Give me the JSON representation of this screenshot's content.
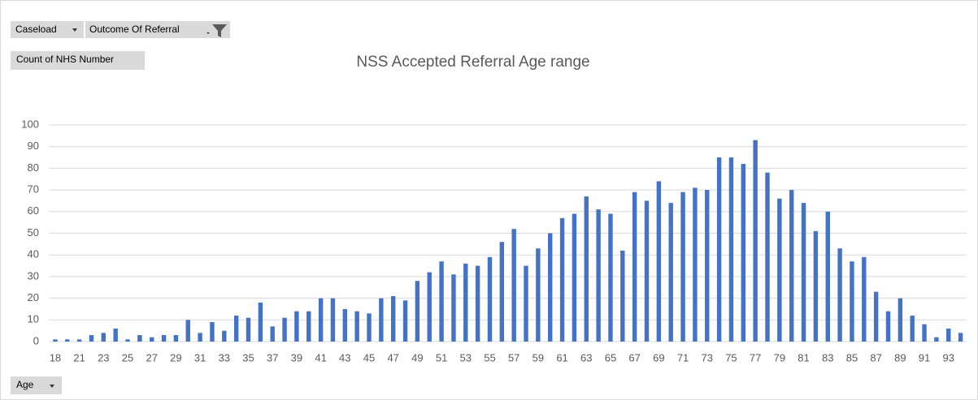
{
  "chart_data": {
    "type": "bar",
    "title": "NSS Accepted Referral  Age range",
    "categories": [
      18,
      null,
      21,
      null,
      23,
      null,
      25,
      null,
      27,
      null,
      29,
      null,
      31,
      null,
      33,
      null,
      35,
      null,
      37,
      null,
      39,
      null,
      41,
      null,
      43,
      null,
      45,
      null,
      47,
      null,
      49,
      null,
      51,
      null,
      53,
      null,
      55,
      null,
      57,
      null,
      59,
      null,
      61,
      null,
      63,
      null,
      65,
      null,
      67,
      null,
      69,
      null,
      71,
      null,
      73,
      null,
      75,
      null,
      77,
      null,
      79,
      null,
      81,
      null,
      83,
      null,
      85,
      null,
      87,
      null,
      89,
      null,
      91,
      null,
      93,
      null
    ],
    "values": [
      1,
      1,
      1,
      3,
      4,
      6,
      1,
      3,
      2,
      3,
      3,
      10,
      4,
      9,
      5,
      12,
      11,
      18,
      7,
      11,
      14,
      14,
      20,
      20,
      15,
      14,
      13,
      20,
      21,
      19,
      28,
      32,
      37,
      31,
      36,
      35,
      39,
      46,
      52,
      35,
      43,
      50,
      57,
      59,
      67,
      61,
      59,
      42,
      69,
      65,
      74,
      64,
      69,
      71,
      70,
      85,
      85,
      82,
      93,
      78,
      66,
      70,
      64,
      51,
      60,
      43,
      37,
      39,
      23,
      14,
      20,
      12,
      8,
      2,
      6,
      4
    ],
    "color": "#4472c4",
    "ylim": [
      0,
      100
    ],
    "yticks": [
      0,
      10,
      20,
      30,
      40,
      50,
      60,
      70,
      80,
      90,
      100
    ],
    "grid": true
  },
  "pivot_fields": {
    "filters": [
      "Caseload",
      "Outcome Of Referral"
    ],
    "values": "Count of NHS Number",
    "axis": "Age"
  }
}
